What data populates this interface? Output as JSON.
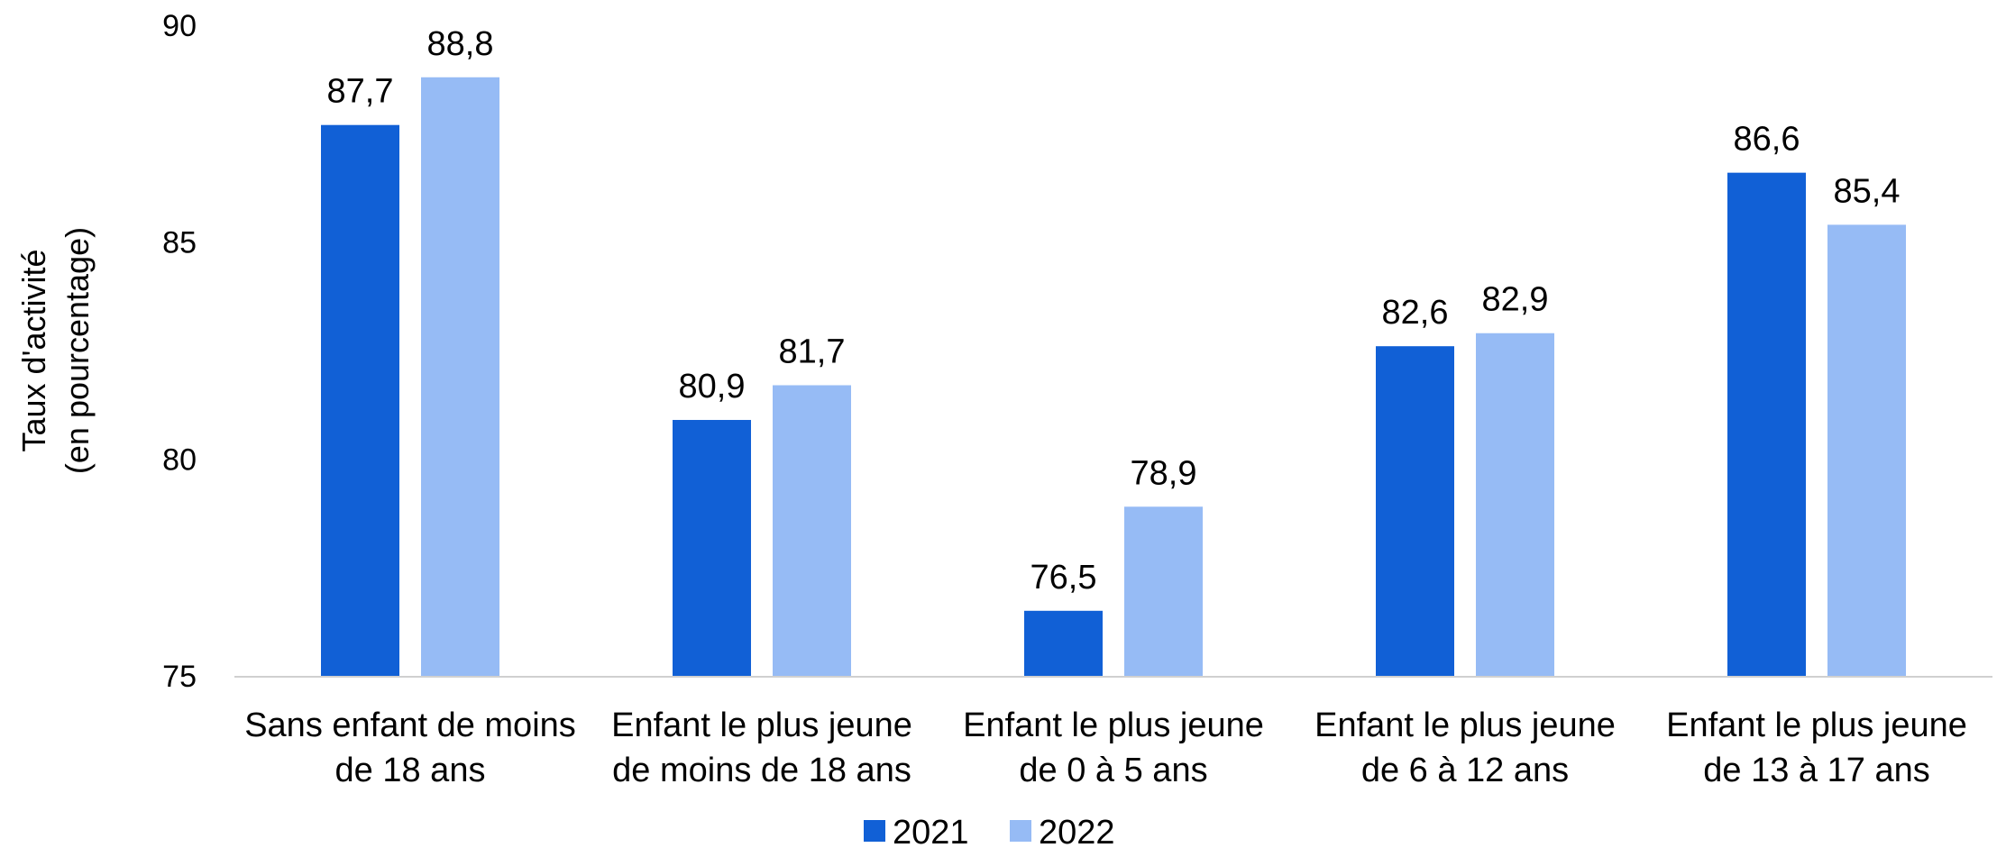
{
  "chart_data": {
    "type": "bar",
    "title": "",
    "ylabel_lines": [
      "Taux d'activité",
      "(en pourcentage)"
    ],
    "xlabel": "",
    "ylim": [
      75,
      90
    ],
    "yticks": [
      "75",
      "80",
      "85",
      "90"
    ],
    "categories": [
      [
        "Sans enfant de moins",
        "de 18 ans"
      ],
      [
        "Enfant le plus jeune",
        "de moins de 18 ans"
      ],
      [
        "Enfant le plus jeune",
        "de 0 à 5 ans"
      ],
      [
        "Enfant le plus jeune",
        "de 6 à 12 ans"
      ],
      [
        "Enfant le plus jeune",
        "de 13 à 17 ans"
      ]
    ],
    "series": [
      {
        "name": "2021",
        "color": "#1160D6",
        "values": [
          87.7,
          80.9,
          76.5,
          82.6,
          86.6
        ],
        "labels": [
          "87,7",
          "80,9",
          "76,5",
          "82,6",
          "86,6"
        ]
      },
      {
        "name": "2022",
        "color": "#96BBF5",
        "values": [
          88.8,
          81.7,
          78.9,
          82.9,
          85.4
        ],
        "labels": [
          "88,8",
          "81,7",
          "78,9",
          "82,9",
          "85,4"
        ]
      }
    ],
    "legend_position": "bottom",
    "grid": false,
    "axis_color": "#D0D0D0"
  }
}
